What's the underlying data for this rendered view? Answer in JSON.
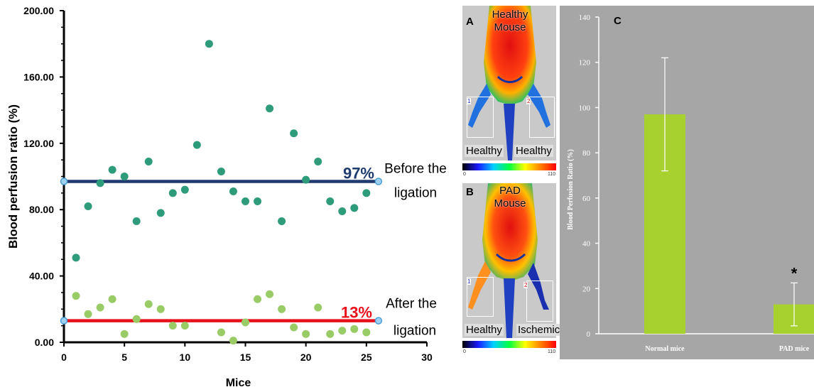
{
  "chart_data": [
    {
      "type": "scatter",
      "xlabel": "Mice",
      "ylabel": "Blood perfusion ratio  (%)",
      "xlim": [
        0,
        30
      ],
      "ylim": [
        0,
        200
      ],
      "xticks": [
        "0",
        "5",
        "10",
        "15",
        "20",
        "25",
        "30"
      ],
      "yticks": [
        "0.00",
        "40.00",
        "80.00",
        "120.00",
        "160.00",
        "200.00"
      ],
      "series": [
        {
          "color": "#2e9b7a",
          "points": [
            [
              1,
              51
            ],
            [
              2,
              82
            ],
            [
              3,
              96
            ],
            [
              4,
              104
            ],
            [
              5,
              100
            ],
            [
              6,
              73
            ],
            [
              7,
              109
            ],
            [
              8,
              78
            ],
            [
              9,
              90
            ],
            [
              10,
              92
            ],
            [
              11,
              119
            ],
            [
              12,
              180
            ],
            [
              13,
              103
            ],
            [
              14,
              91
            ],
            [
              15,
              85
            ],
            [
              16,
              85
            ],
            [
              17,
              141
            ],
            [
              18,
              73
            ],
            [
              19,
              126
            ],
            [
              20,
              98
            ],
            [
              21,
              109
            ],
            [
              22,
              85
            ],
            [
              23,
              79
            ],
            [
              24,
              81
            ],
            [
              25,
              90
            ]
          ]
        },
        {
          "color": "#99cc66",
          "points": [
            [
              1,
              28
            ],
            [
              2,
              17
            ],
            [
              3,
              21
            ],
            [
              4,
              26
            ],
            [
              5,
              5
            ],
            [
              6,
              14
            ],
            [
              7,
              23
            ],
            [
              8,
              20
            ],
            [
              9,
              10
            ],
            [
              10,
              10
            ],
            [
              13,
              6
            ],
            [
              14,
              1
            ],
            [
              15,
              12
            ],
            [
              16,
              26
            ],
            [
              17,
              29
            ],
            [
              18,
              20
            ],
            [
              19,
              9
            ],
            [
              20,
              5
            ],
            [
              21,
              21
            ],
            [
              22,
              5
            ],
            [
              23,
              7
            ],
            [
              24,
              8
            ],
            [
              25,
              6
            ]
          ]
        }
      ],
      "reference_lines": [
        {
          "value": 97,
          "from": 0,
          "to": 26,
          "color": "#1f3a6e",
          "label_pct": "97%",
          "label_1": "Before the",
          "label_2": "ligation"
        },
        {
          "value": 13,
          "from": 0,
          "to": 26,
          "color": "#e8101a",
          "label_pct": "13%",
          "label_1": "After the",
          "label_2": "ligation"
        }
      ]
    },
    {
      "type": "bar",
      "panel_label": "C",
      "categories": [
        "Normal mice",
        "PAD mice"
      ],
      "values": [
        97,
        13
      ],
      "error": [
        25,
        9.5
      ],
      "ylabel": "Blood Perfusion Ratio (%)",
      "ylim": [
        0,
        140
      ],
      "yticks": [
        "0",
        "20",
        "40",
        "60",
        "80",
        "100",
        "120",
        "140"
      ],
      "bar_color": "#a6d12f",
      "background": "#a6a6a6",
      "significance": "*"
    }
  ],
  "images": {
    "panel_a": {
      "letter": "A",
      "title_1": "Healthy",
      "title_2": "Mouse",
      "left_label": "Healthy",
      "right_label": "Healthy",
      "roi_left": "1",
      "roi_right": "2"
    },
    "panel_b": {
      "letter": "B",
      "title_1": "PAD",
      "title_2": "Mouse",
      "left_label": "Healthy",
      "right_label": "Ischemic",
      "roi_left": "1",
      "roi_right": "2"
    },
    "colorbar_min": "0",
    "colorbar_max": "110"
  }
}
